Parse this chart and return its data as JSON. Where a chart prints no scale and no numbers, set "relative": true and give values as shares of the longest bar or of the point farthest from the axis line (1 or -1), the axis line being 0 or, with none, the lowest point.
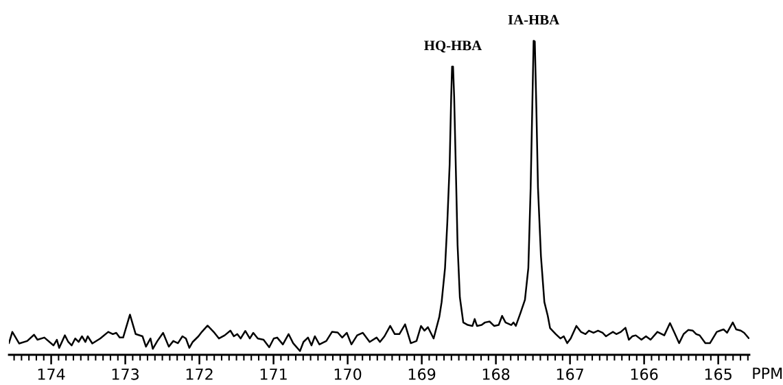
{
  "chart_data": {
    "type": "line",
    "relative": true,
    "xlabel": "PPM",
    "xlim": [
      174.57,
      164.58
    ],
    "xticks": [
      174,
      173,
      172,
      171,
      170,
      169,
      168,
      167,
      166,
      165
    ],
    "grid": false,
    "legend": false,
    "annotations": [
      {
        "text": "HQ-HBA",
        "x": 168.58,
        "y": 0.918
      },
      {
        "text": "IA-HBA",
        "x": 167.491,
        "y": 1.0
      }
    ],
    "series": [
      {
        "color": "#000000",
        "x": [
          174.57,
          174.524,
          174.431,
          174.323,
          174.231,
          174.185,
          174.092,
          173.969,
          173.923,
          173.892,
          173.815,
          173.769,
          173.723,
          173.676,
          173.63,
          173.584,
          173.538,
          173.507,
          173.445,
          173.338,
          173.23,
          173.168,
          173.122,
          173.076,
          173.029,
          172.937,
          172.86,
          172.768,
          172.721,
          172.66,
          172.629,
          172.567,
          172.49,
          172.413,
          172.352,
          172.29,
          172.229,
          172.182,
          172.136,
          172.09,
          172.013,
          171.967,
          171.89,
          171.797,
          171.736,
          171.659,
          171.582,
          171.535,
          171.489,
          171.443,
          171.381,
          171.32,
          171.273,
          171.212,
          171.135,
          171.058,
          170.997,
          170.951,
          170.874,
          170.797,
          170.735,
          170.643,
          170.596,
          170.535,
          170.488,
          170.442,
          170.381,
          170.288,
          170.211,
          170.134,
          170.073,
          170.011,
          169.949,
          169.872,
          169.795,
          169.703,
          169.61,
          169.564,
          169.503,
          169.426,
          169.364,
          169.302,
          169.225,
          169.148,
          169.071,
          169.01,
          168.964,
          168.917,
          168.84,
          168.763,
          168.732,
          168.686,
          168.655,
          168.624,
          168.603,
          168.591,
          168.578,
          168.563,
          168.538,
          168.517,
          168.486,
          168.44,
          168.378,
          168.316,
          168.286,
          168.255,
          168.193,
          168.147,
          168.085,
          168.024,
          167.962,
          167.916,
          167.87,
          167.793,
          167.762,
          167.731,
          167.67,
          167.608,
          167.562,
          167.531,
          167.509,
          167.491,
          167.475,
          167.454,
          167.432,
          167.392,
          167.346,
          167.3,
          167.269,
          167.192,
          167.13,
          167.084,
          167.038,
          166.991,
          166.914,
          166.853,
          166.791,
          166.745,
          166.683,
          166.622,
          166.56,
          166.514,
          166.468,
          166.421,
          166.375,
          166.314,
          166.252,
          166.206,
          166.16,
          166.113,
          166.036,
          165.975,
          165.913,
          165.821,
          165.728,
          165.651,
          165.59,
          165.528,
          165.467,
          165.405,
          165.343,
          165.297,
          165.251,
          165.174,
          165.112,
          165.02,
          164.974,
          164.928,
          164.881,
          164.804,
          164.758,
          164.696,
          164.65,
          164.589
        ],
        "values": [
          0.037,
          0.073,
          0.036,
          0.044,
          0.064,
          0.048,
          0.055,
          0.03,
          0.048,
          0.022,
          0.062,
          0.041,
          0.03,
          0.052,
          0.041,
          0.059,
          0.041,
          0.059,
          0.036,
          0.052,
          0.073,
          0.066,
          0.07,
          0.055,
          0.055,
          0.128,
          0.066,
          0.059,
          0.026,
          0.052,
          0.019,
          0.044,
          0.07,
          0.026,
          0.044,
          0.037,
          0.059,
          0.052,
          0.022,
          0.041,
          0.059,
          0.073,
          0.093,
          0.07,
          0.052,
          0.062,
          0.077,
          0.059,
          0.066,
          0.052,
          0.076,
          0.052,
          0.07,
          0.052,
          0.048,
          0.024,
          0.052,
          0.055,
          0.033,
          0.066,
          0.037,
          0.012,
          0.041,
          0.055,
          0.03,
          0.059,
          0.033,
          0.044,
          0.073,
          0.071,
          0.055,
          0.07,
          0.033,
          0.062,
          0.07,
          0.041,
          0.055,
          0.041,
          0.059,
          0.092,
          0.066,
          0.066,
          0.097,
          0.037,
          0.044,
          0.092,
          0.077,
          0.088,
          0.052,
          0.121,
          0.168,
          0.277,
          0.423,
          0.605,
          0.823,
          0.918,
          0.918,
          0.823,
          0.568,
          0.35,
          0.183,
          0.103,
          0.095,
          0.092,
          0.114,
          0.092,
          0.095,
          0.103,
          0.106,
          0.092,
          0.095,
          0.124,
          0.103,
          0.095,
          0.103,
          0.092,
          0.132,
          0.175,
          0.277,
          0.532,
          0.787,
          1.0,
          0.998,
          0.787,
          0.532,
          0.314,
          0.168,
          0.124,
          0.085,
          0.066,
          0.052,
          0.059,
          0.037,
          0.052,
          0.092,
          0.073,
          0.066,
          0.077,
          0.07,
          0.077,
          0.07,
          0.059,
          0.066,
          0.073,
          0.066,
          0.073,
          0.086,
          0.048,
          0.059,
          0.062,
          0.048,
          0.059,
          0.048,
          0.073,
          0.062,
          0.101,
          0.07,
          0.037,
          0.066,
          0.079,
          0.077,
          0.066,
          0.062,
          0.037,
          0.037,
          0.073,
          0.077,
          0.081,
          0.07,
          0.103,
          0.081,
          0.077,
          0.07,
          0.053
        ]
      }
    ]
  }
}
